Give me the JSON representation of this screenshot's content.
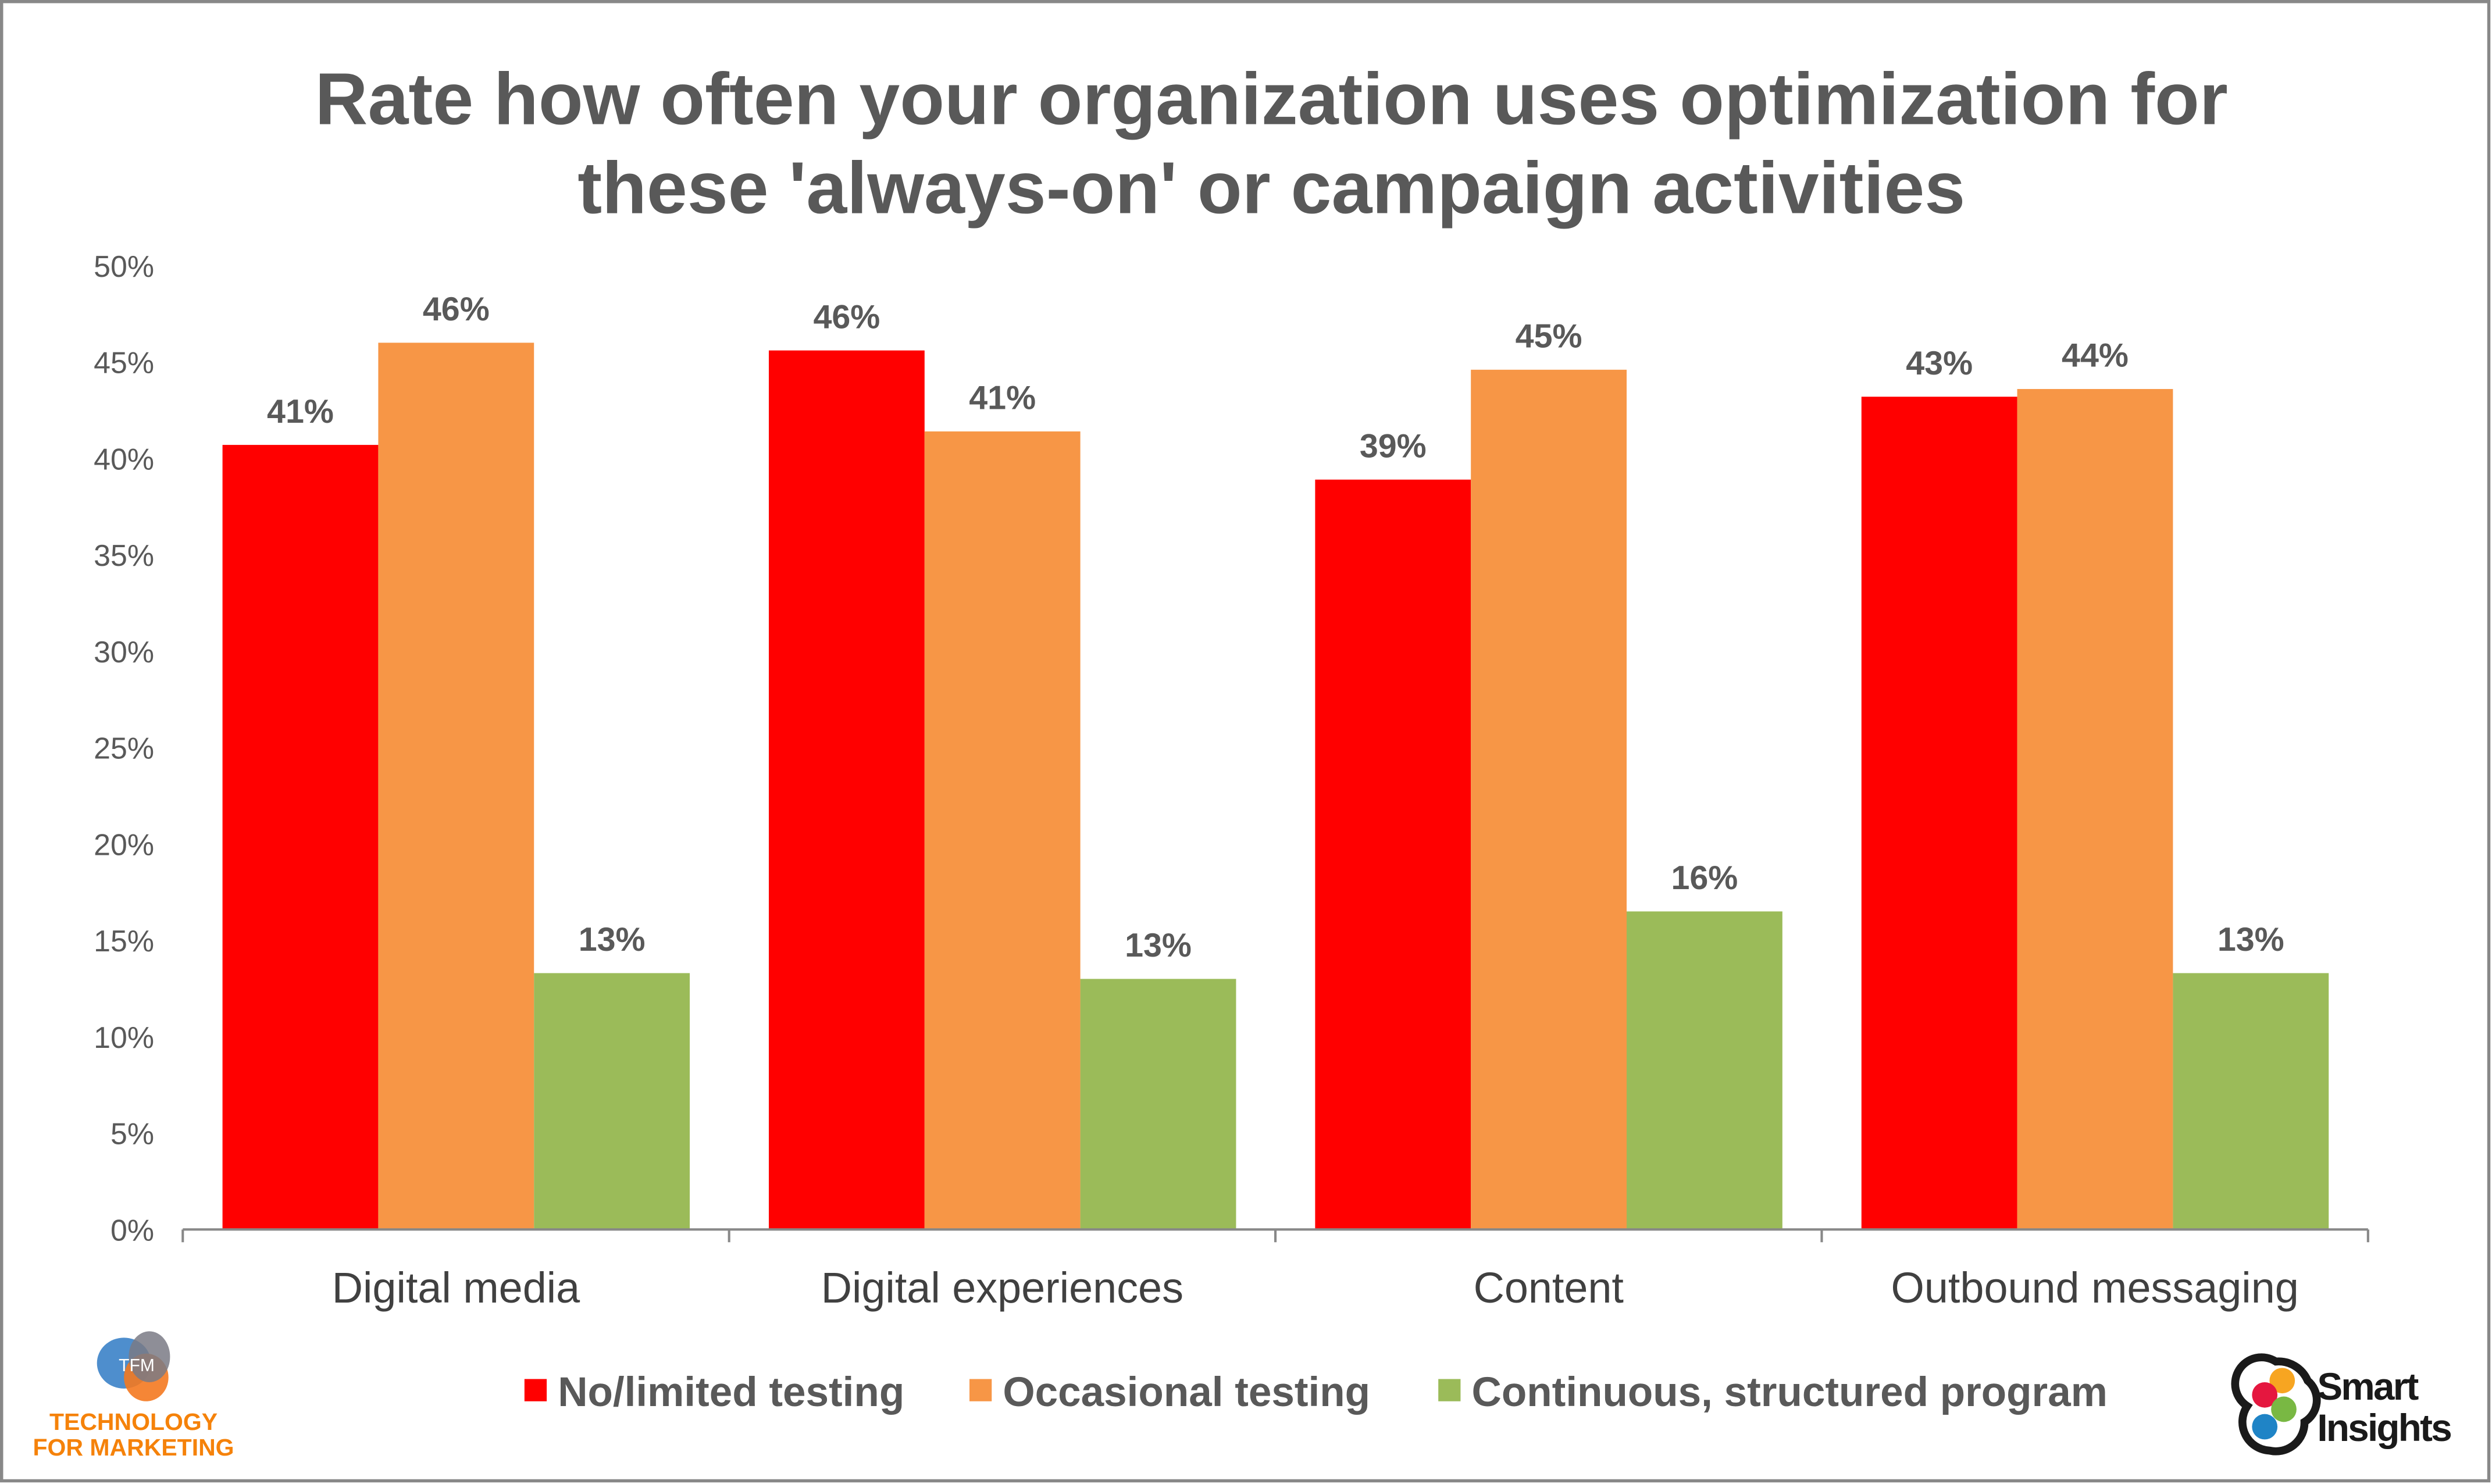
{
  "chart_data": {
    "type": "bar",
    "title_lines": [
      "Rate how often your organization uses optimization for",
      "these 'always-on' or campaign activities"
    ],
    "xlabel": "",
    "ylabel": "",
    "categories": [
      "Digital media",
      "Digital experiences",
      "Content",
      "Outbound messaging"
    ],
    "series": [
      {
        "name": "No/limited testing",
        "color": "#FF0000",
        "values": [
          40.7,
          45.6,
          38.9,
          43.2
        ],
        "labels": [
          "41%",
          "46%",
          "39%",
          "43%"
        ]
      },
      {
        "name": "Occasional testing",
        "color": "#F79646",
        "values": [
          46.0,
          41.4,
          44.6,
          43.6
        ],
        "labels": [
          "46%",
          "41%",
          "45%",
          "44%"
        ]
      },
      {
        "name": "Continuous, structured program",
        "color": "#9BBB59",
        "values": [
          13.3,
          13.0,
          16.5,
          13.3
        ],
        "labels": [
          "13%",
          "13%",
          "16%",
          "13%"
        ]
      }
    ],
    "ylim": [
      0,
      50
    ],
    "yticks": [
      "0%",
      "5%",
      "10%",
      "15%",
      "20%",
      "25%",
      "30%",
      "35%",
      "40%",
      "45%",
      "50%"
    ],
    "grid": false,
    "legend_placement": "bottom"
  },
  "logos": {
    "left": {
      "text_line1": "TECHNOLOGY",
      "text_line2": "FOR MARKETING",
      "mark": "TFM"
    },
    "right": {
      "text_line1": "Smart",
      "text_line2": "Insights"
    }
  }
}
